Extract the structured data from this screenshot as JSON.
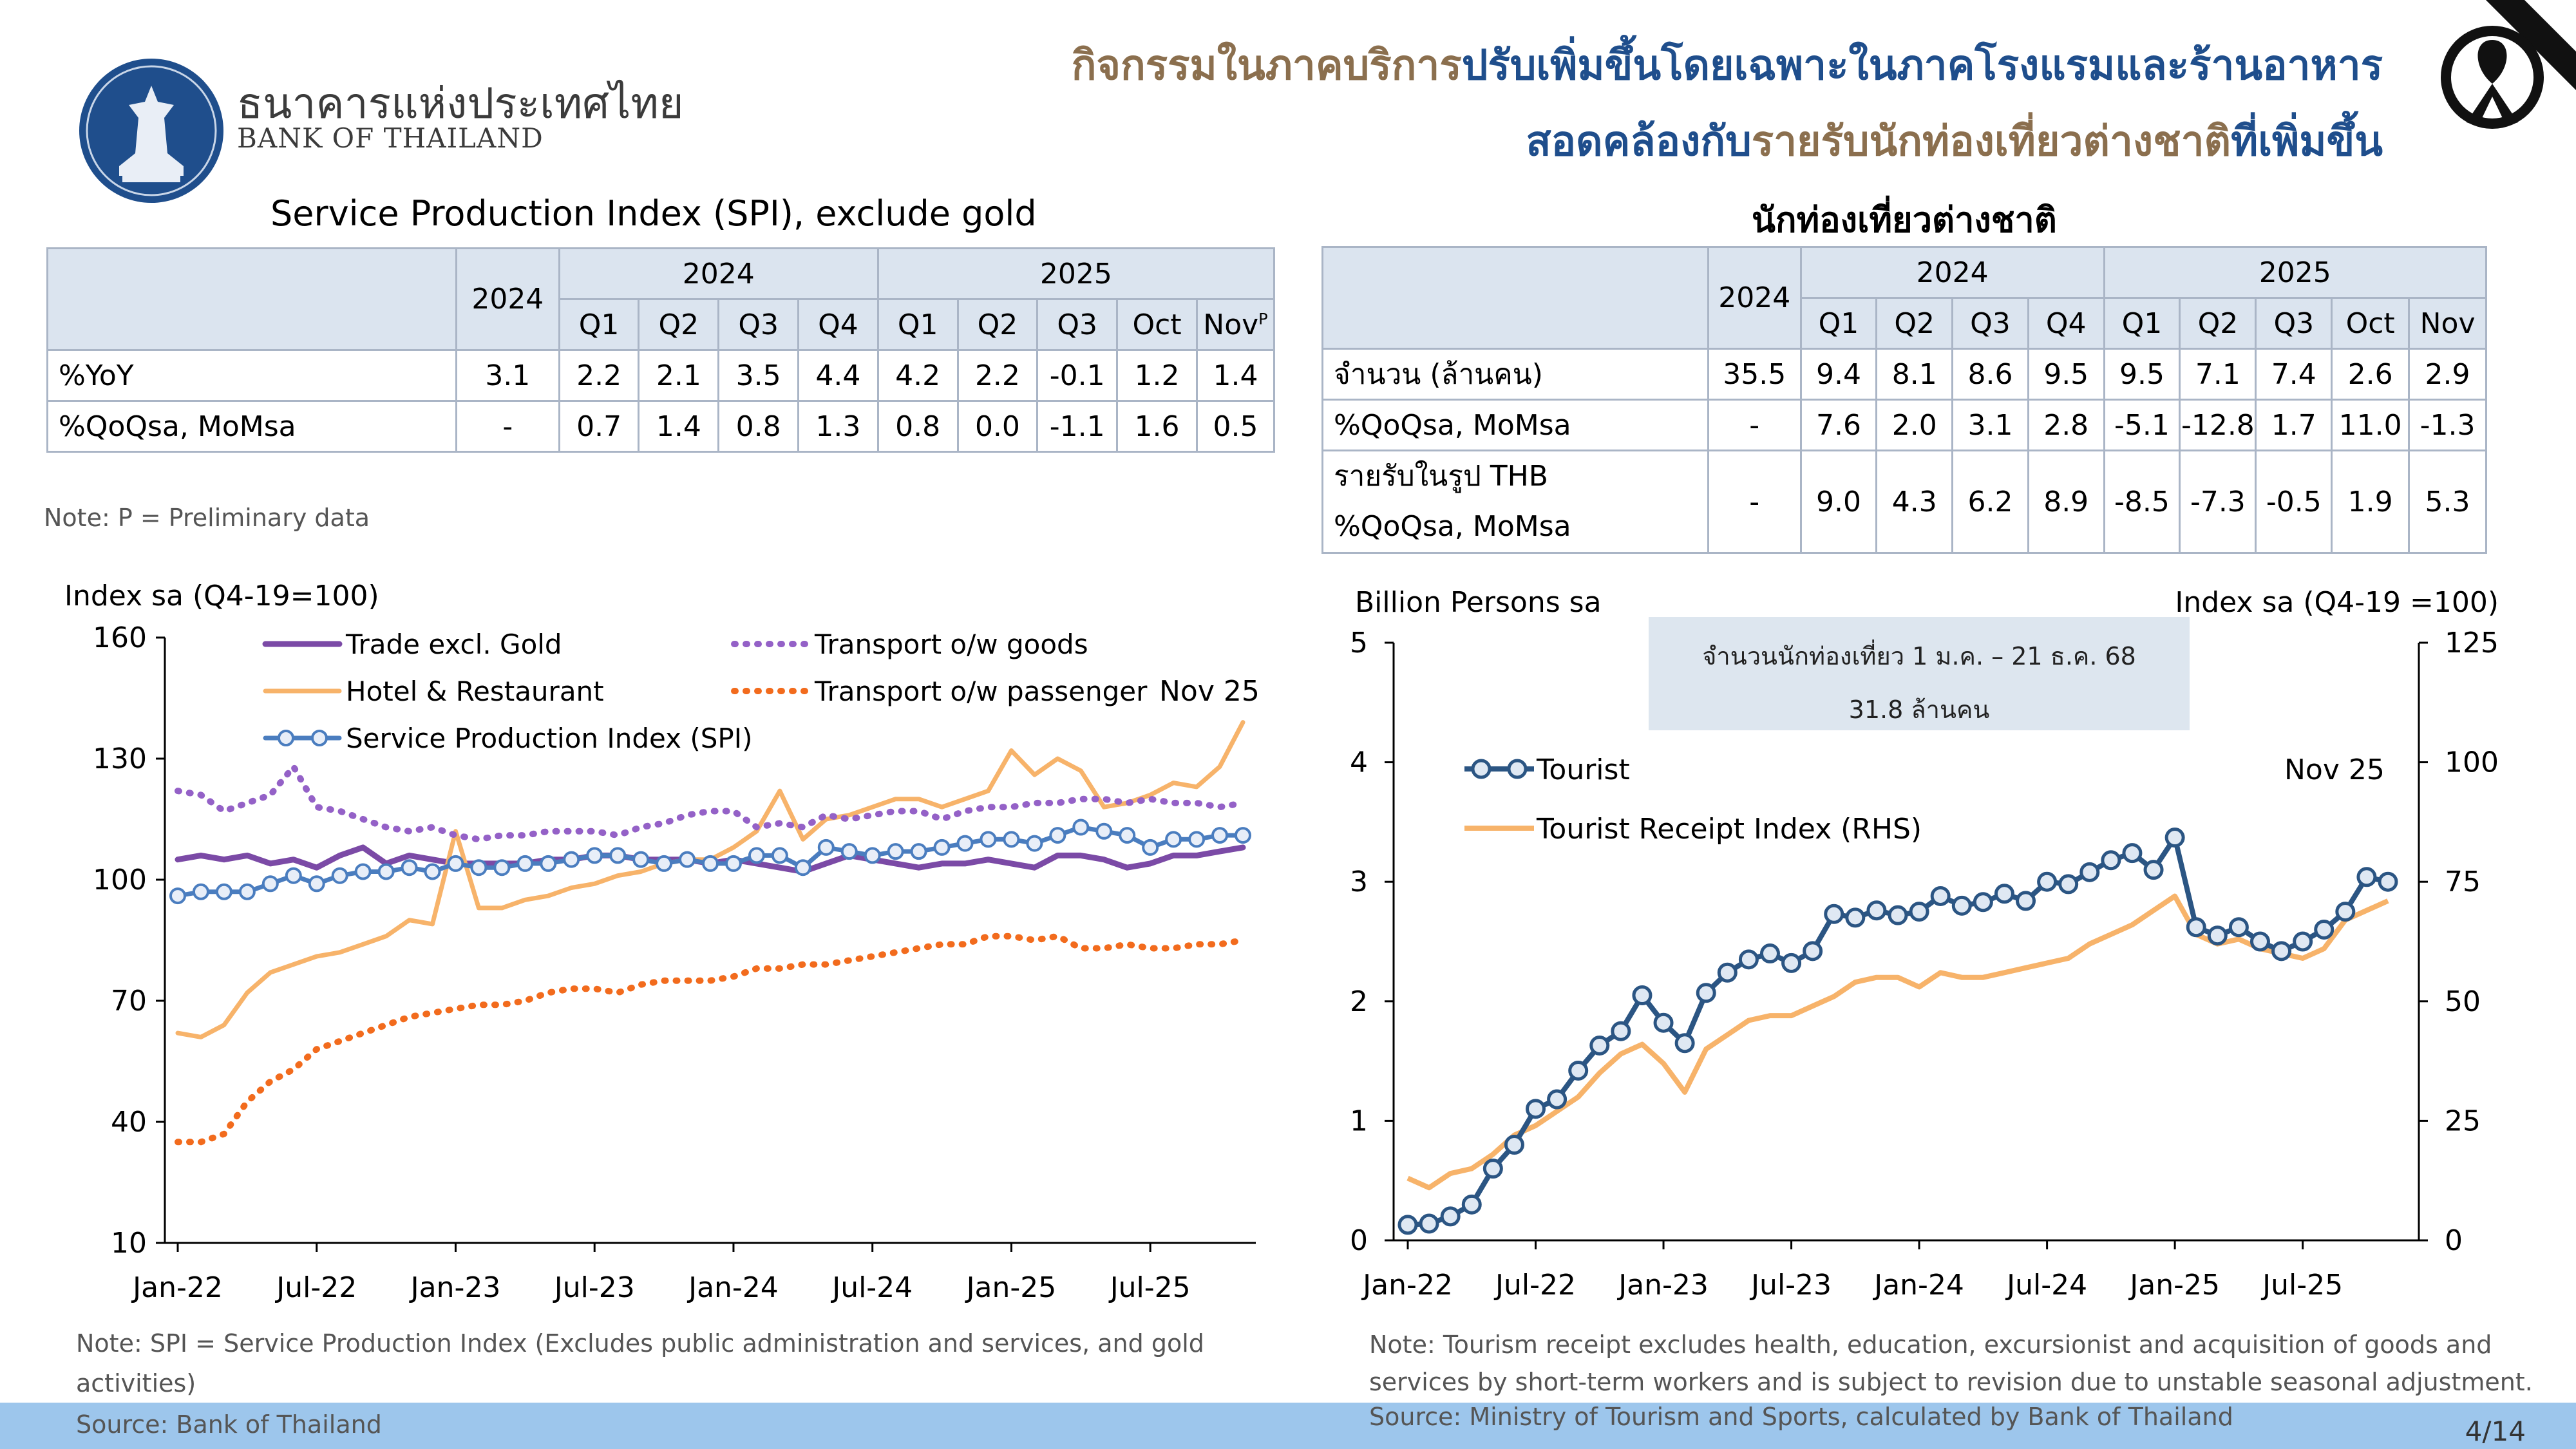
{
  "header": {
    "bank_name_th": "ธนาคารแห่งประเทศไทย",
    "bank_name_en": "BANK OF THAILAND",
    "headline_line1_part1": "กิจกรรมในภาคบริการ",
    "headline_line1_part2": "ปรับเพิ่มขึ้นโดยเฉพาะในภาคโรงแรมและร้านอาหาร",
    "headline_line2_part1": "สอดคล้องกับ",
    "headline_line2_part2": "รายรับนักท่องเที่ยวต่างชาติ",
    "headline_line2_part3": "ที่เพิ่มขึ้น"
  },
  "colors": {
    "brown": "#8b6f4e",
    "blue": "#1f4e8c",
    "trade": "#7b4aa6",
    "hotel": "#f7b36a",
    "transport_goods": "#9461c7",
    "transport_passenger": "#f26b1d",
    "spi": "#4a7dbf",
    "tourist": "#2b5583",
    "receipt": "#f7b36a",
    "table_header_bg": "#dbe4ef",
    "source_band": "#9dc6ec"
  },
  "spi_table": {
    "title": "Service Production Index (SPI), exclude gold",
    "year_2024": "2024",
    "group_2024": "2024",
    "group_2025": "2025",
    "columns": [
      "Q1",
      "Q2",
      "Q3",
      "Q4",
      "Q1",
      "Q2",
      "Q3",
      "Oct",
      "Nov"
    ],
    "nov_superscript": "P",
    "rows": [
      {
        "label": "%YoY",
        "values": [
          "3.1",
          "2.2",
          "2.1",
          "3.5",
          "4.4",
          "4.2",
          "2.2",
          "-0.1",
          "1.2",
          "1.4"
        ]
      },
      {
        "label": "%QoQsa, MoMsa",
        "values": [
          "-",
          "0.7",
          "1.4",
          "0.8",
          "1.3",
          "0.8",
          "0.0",
          "-1.1",
          "1.6",
          "0.5"
        ]
      }
    ],
    "note": "Note: P = Preliminary data"
  },
  "tourist_table": {
    "title": "นักท่องเที่ยวต่างชาติ",
    "year_2024": "2024",
    "group_2024": "2024",
    "group_2025": "2025",
    "columns": [
      "Q1",
      "Q2",
      "Q3",
      "Q4",
      "Q1",
      "Q2",
      "Q3",
      "Oct",
      "Nov"
    ],
    "rows": [
      {
        "label": "จำนวน (ล้านคน)",
        "values": [
          "35.5",
          "9.4",
          "8.1",
          "8.6",
          "9.5",
          "9.5",
          "7.1",
          "7.4",
          "2.6",
          "2.9"
        ]
      },
      {
        "label": "%QoQsa, MoMsa",
        "values": [
          "-",
          "7.6",
          "2.0",
          "3.1",
          "2.8",
          "-5.1",
          "-12.8",
          "1.7",
          "11.0",
          "-1.3"
        ]
      }
    ],
    "receipt_row": {
      "label1": "รายรับในรูป THB",
      "label2": "%QoQsa, MoMsa",
      "values": [
        "-",
        "9.0",
        "4.3",
        "6.2",
        "8.9",
        "-8.5",
        "-7.3",
        "-0.5",
        "1.9",
        "5.3"
      ]
    }
  },
  "chart_data": [
    {
      "type": "line",
      "ylabel": "Index sa (Q4-19=100)",
      "ylim": [
        10,
        160
      ],
      "yticks": [
        10,
        40,
        70,
        100,
        130,
        160
      ],
      "xticks": [
        "Jan-22",
        "Jul-22",
        "Jan-23",
        "Jul-23",
        "Jan-24",
        "Jul-24",
        "Jan-25",
        "Jul-25"
      ],
      "x_months": "Jan-22 to Nov-25 (47 months)",
      "annotation": "Nov 25",
      "legend_position": "top",
      "series": [
        {
          "name": "Trade excl. Gold",
          "values": [
            105,
            106,
            105,
            106,
            104,
            105,
            103,
            106,
            108,
            104,
            106,
            105,
            104,
            104,
            104,
            104,
            105,
            105,
            106,
            106,
            105,
            105,
            105,
            104,
            105,
            104,
            103,
            102,
            104,
            106,
            105,
            104,
            103,
            104,
            104,
            105,
            104,
            103,
            106,
            106,
            105,
            103,
            104,
            106,
            106,
            107,
            108
          ]
        },
        {
          "name": "Hotel & Restaurant",
          "values": [
            62,
            61,
            64,
            72,
            77,
            79,
            81,
            82,
            84,
            86,
            90,
            89,
            112,
            93,
            93,
            95,
            96,
            98,
            99,
            101,
            102,
            104,
            105,
            105,
            108,
            112,
            122,
            110,
            115,
            116,
            118,
            120,
            120,
            118,
            120,
            122,
            132,
            126,
            130,
            127,
            118,
            119,
            121,
            124,
            123,
            128,
            139
          ]
        },
        {
          "name": "Transport o/w goods",
          "values": [
            122,
            121,
            117,
            119,
            121,
            128,
            118,
            117,
            115,
            113,
            112,
            113,
            111,
            110,
            111,
            111,
            112,
            112,
            112,
            111,
            113,
            114,
            116,
            117,
            117,
            113,
            114,
            113,
            116,
            115,
            116,
            117,
            117,
            115,
            117,
            118,
            118,
            119,
            119,
            120,
            120,
            119,
            120,
            119,
            119,
            118,
            119
          ]
        },
        {
          "name": "Transport o/w passenger",
          "values": [
            35,
            35,
            37,
            45,
            50,
            53,
            58,
            60,
            62,
            64,
            66,
            67,
            68,
            69,
            69,
            70,
            72,
            73,
            73,
            72,
            74,
            75,
            75,
            75,
            76,
            78,
            78,
            79,
            79,
            80,
            81,
            82,
            83,
            84,
            84,
            86,
            86,
            85,
            86,
            83,
            83,
            84,
            83,
            83,
            84,
            84,
            85
          ]
        },
        {
          "name": "Service Production Index (SPI)",
          "values": [
            96,
            97,
            97,
            97,
            99,
            101,
            99,
            101,
            102,
            102,
            103,
            102,
            104,
            103,
            103,
            104,
            104,
            105,
            106,
            106,
            105,
            104,
            105,
            104,
            104,
            106,
            106,
            103,
            108,
            107,
            106,
            107,
            107,
            108,
            109,
            110,
            110,
            109,
            111,
            113,
            112,
            111,
            108,
            110,
            110,
            111,
            111
          ]
        }
      ]
    },
    {
      "type": "line",
      "ylabel_left": "Billion Persons sa",
      "ylabel_right": "Index sa (Q4-19 =100)",
      "ylim_left": [
        0,
        5
      ],
      "ylim_right": [
        0,
        125
      ],
      "yticks_left": [
        0,
        1,
        2,
        3,
        4,
        5
      ],
      "yticks_right": [
        0,
        25,
        50,
        75,
        100,
        125
      ],
      "xticks": [
        "Jan-22",
        "Jul-22",
        "Jan-23",
        "Jul-23",
        "Jan-24",
        "Jul-24",
        "Jan-25",
        "Jul-25"
      ],
      "x_months": "Jan-22 to Nov-25 (47 months)",
      "annotation": "Nov 25",
      "legend_position": "left",
      "series": [
        {
          "name": "Tourist",
          "axis": "left",
          "values": [
            0.13,
            0.14,
            0.2,
            0.3,
            0.6,
            0.8,
            1.1,
            1.18,
            1.42,
            1.63,
            1.75,
            2.05,
            1.82,
            1.65,
            2.07,
            2.24,
            2.35,
            2.4,
            2.32,
            2.42,
            2.73,
            2.7,
            2.76,
            2.72,
            2.75,
            2.88,
            2.8,
            2.83,
            2.9,
            2.84,
            3.0,
            2.98,
            3.08,
            3.18,
            3.24,
            3.1,
            3.37,
            2.62,
            2.55,
            2.62,
            2.5,
            2.42,
            2.5,
            2.6,
            2.75,
            3.04,
            3.0
          ]
        },
        {
          "name": "Tourist Receipt Index (RHS)",
          "axis": "right",
          "values": [
            13,
            11,
            14,
            15,
            18,
            22,
            24,
            27,
            30,
            35,
            39,
            41,
            37,
            31,
            40,
            43,
            46,
            47,
            47,
            49,
            51,
            54,
            55,
            55,
            53,
            56,
            55,
            55,
            56,
            57,
            58,
            59,
            62,
            64,
            66,
            69,
            72,
            64,
            62,
            63,
            61,
            60,
            59,
            61,
            67,
            69,
            71
          ]
        }
      ]
    }
  ],
  "chart1_notes": {
    "line1": "Note: SPI = Service Production Index (Excludes public administration and services, and gold",
    "line2": "activities)"
  },
  "chart2_info_box": {
    "line1": "จำนวนนักท่องเที่ยว 1 ม.ค. – 21 ธ.ค. 68",
    "line2": "31.8 ล้านคน"
  },
  "chart2_notes": {
    "line1": "Note: Tourism receipt excludes health, education, excursionist and acquisition of goods and",
    "line2": "services by short-term workers and is subject to revision due to unstable seasonal adjustment.",
    "source": "Source: Ministry of Tourism and Sports, calculated by Bank of Thailand"
  },
  "footer": {
    "source": "Source: Bank of Thailand",
    "page": "4/14"
  }
}
